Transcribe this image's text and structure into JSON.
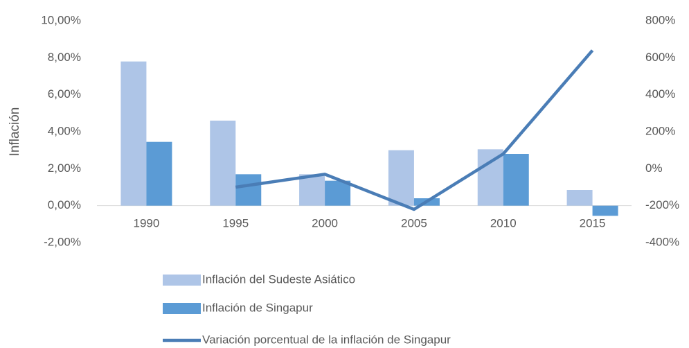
{
  "chart_data": {
    "type": "bar_line",
    "y_label": "Inflación",
    "categories": [
      "1990",
      "1995",
      "2000",
      "2005",
      "2010",
      "2015"
    ],
    "series": [
      {
        "name": "Inflación del Sudeste Asiático",
        "color": "#aec5e7",
        "type": "bar",
        "values": [
          7.8,
          4.6,
          1.7,
          3.0,
          3.05,
          0.85
        ]
      },
      {
        "name": "Inflación de Singapur",
        "color": "#5b9bd5",
        "type": "bar",
        "values": [
          3.45,
          1.7,
          1.35,
          0.4,
          2.8,
          -0.55
        ]
      },
      {
        "name": "Variación porcentual de la inflación de Singapur",
        "color": "#4a7db6",
        "type": "line",
        "axis": "y2",
        "values": [
          null,
          -100,
          -30,
          -220,
          80,
          640
        ]
      }
    ],
    "ylim": [
      -2,
      10
    ],
    "yticks": [
      {
        "value": -2,
        "label": "-2,00%"
      },
      {
        "value": 0,
        "label": "0,00%"
      },
      {
        "value": 2,
        "label": "2,00%"
      },
      {
        "value": 4,
        "label": "4,00%"
      },
      {
        "value": 6,
        "label": "6,00%"
      },
      {
        "value": 8,
        "label": "8,00%"
      },
      {
        "value": 10,
        "label": "10,00%"
      }
    ],
    "y2lim": [
      -400,
      800
    ],
    "y2ticks": [
      {
        "value": -400,
        "label": "-400%"
      },
      {
        "value": -200,
        "label": "-200%"
      },
      {
        "value": 0,
        "label": "0%"
      },
      {
        "value": 200,
        "label": "200%"
      },
      {
        "value": 400,
        "label": "400%"
      },
      {
        "value": 600,
        "label": "600%"
      },
      {
        "value": 800,
        "label": "800%"
      }
    ],
    "legend": "bottom"
  }
}
